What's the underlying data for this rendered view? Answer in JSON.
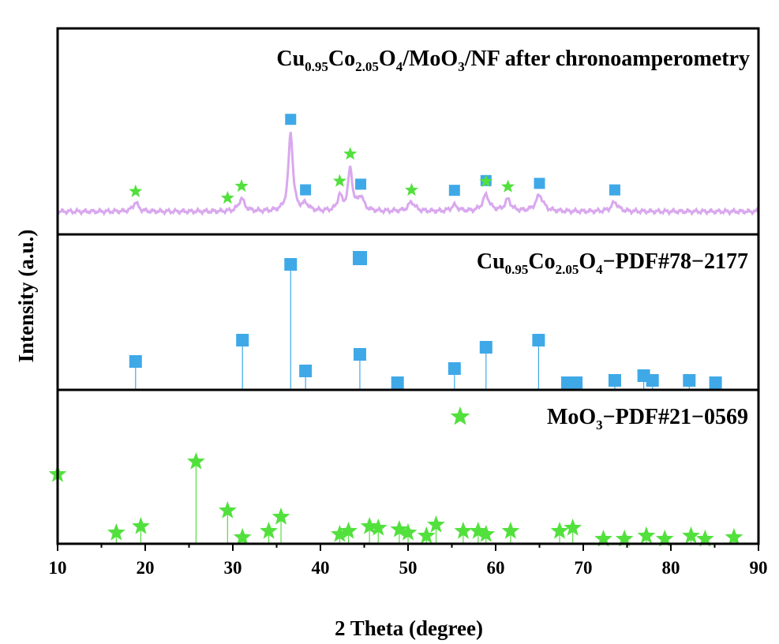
{
  "chart_data": {
    "type": "line",
    "xlabel": "2 Theta (degree)",
    "ylabel": "Intensity (a.u.)",
    "xlim": [
      10,
      90
    ],
    "xticks": [
      "10",
      "20",
      "30",
      "40",
      "50",
      "60",
      "70",
      "80",
      "90"
    ],
    "grid": false,
    "colors": {
      "measured": "#d9a8ee",
      "spinel": "#3fa9e8",
      "moo3": "#52e03d"
    },
    "panels": [
      {
        "id": "measured",
        "title_parts": [
          {
            "t": "Cu"
          },
          {
            "t": "0.95",
            "sub": true
          },
          {
            "t": "Co"
          },
          {
            "t": "2.05",
            "sub": true
          },
          {
            "t": "O"
          },
          {
            "t": "4",
            "sub": true
          },
          {
            "t": "/MoO"
          },
          {
            "t": "3",
            "sub": true
          },
          {
            "t": "/NF after chronoamperometry"
          }
        ],
        "series": {
          "type": "line",
          "peaks": [
            {
              "x": 18.9,
              "h": 0.08,
              "w": 0.35
            },
            {
              "x": 31.0,
              "h": 0.11,
              "w": 0.4
            },
            {
              "x": 36.6,
              "h": 0.68,
              "w": 0.3
            },
            {
              "x": 38.3,
              "h": 0.06,
              "w": 0.4
            },
            {
              "x": 42.2,
              "h": 0.13,
              "w": 0.3
            },
            {
              "x": 43.4,
              "h": 0.36,
              "w": 0.3
            },
            {
              "x": 44.6,
              "h": 0.12,
              "w": 0.4
            },
            {
              "x": 50.4,
              "h": 0.08,
              "w": 0.45
            },
            {
              "x": 55.3,
              "h": 0.05,
              "w": 0.45
            },
            {
              "x": 58.9,
              "h": 0.14,
              "w": 0.45
            },
            {
              "x": 61.4,
              "h": 0.1,
              "w": 0.4
            },
            {
              "x": 65.0,
              "h": 0.14,
              "w": 0.5
            },
            {
              "x": 73.6,
              "h": 0.08,
              "w": 0.45
            }
          ],
          "square_markers": [
            36.6,
            38.3,
            44.6,
            55.3,
            58.9,
            65.0,
            73.6
          ],
          "star_markers": [
            18.9,
            29.4,
            31.0,
            42.2,
            43.4,
            50.4,
            58.9,
            61.4
          ]
        }
      },
      {
        "id": "spinel",
        "title_parts": [
          {
            "t": "Cu"
          },
          {
            "t": "0.95",
            "sub": true
          },
          {
            "t": "Co"
          },
          {
            "t": "2.05",
            "sub": true
          },
          {
            "t": "O"
          },
          {
            "t": "4",
            "sub": true
          },
          {
            "t": "−PDF#78−2177"
          }
        ],
        "marker": "square",
        "sticks": [
          {
            "x": 18.9,
            "y": 0.12
          },
          {
            "x": 31.1,
            "y": 0.21
          },
          {
            "x": 36.6,
            "y": 0.53
          },
          {
            "x": 38.3,
            "y": 0.08
          },
          {
            "x": 44.5,
            "y": 0.15
          },
          {
            "x": 48.8,
            "y": 0.03
          },
          {
            "x": 55.3,
            "y": 0.09
          },
          {
            "x": 58.9,
            "y": 0.18
          },
          {
            "x": 64.9,
            "y": 0.21
          },
          {
            "x": 68.2,
            "y": 0.03
          },
          {
            "x": 69.2,
            "y": 0.03
          },
          {
            "x": 73.6,
            "y": 0.04
          },
          {
            "x": 76.9,
            "y": 0.06
          },
          {
            "x": 77.9,
            "y": 0.04
          },
          {
            "x": 82.1,
            "y": 0.04
          },
          {
            "x": 85.1,
            "y": 0.03
          }
        ]
      },
      {
        "id": "moo3",
        "title_parts": [
          {
            "t": "MoO"
          },
          {
            "t": "3",
            "sub": true
          },
          {
            "t": "−PDF#21−0569"
          }
        ],
        "marker": "star",
        "sticks": [
          {
            "x": 10.0,
            "y": 0.44
          },
          {
            "x": 16.7,
            "y": 0.07
          },
          {
            "x": 19.5,
            "y": 0.11
          },
          {
            "x": 25.8,
            "y": 0.52
          },
          {
            "x": 29.4,
            "y": 0.21
          },
          {
            "x": 31.1,
            "y": 0.04
          },
          {
            "x": 34.1,
            "y": 0.08
          },
          {
            "x": 35.5,
            "y": 0.17
          },
          {
            "x": 42.2,
            "y": 0.06
          },
          {
            "x": 43.2,
            "y": 0.08
          },
          {
            "x": 45.6,
            "y": 0.11
          },
          {
            "x": 46.6,
            "y": 0.1
          },
          {
            "x": 49.0,
            "y": 0.09
          },
          {
            "x": 50.0,
            "y": 0.07
          },
          {
            "x": 52.1,
            "y": 0.05
          },
          {
            "x": 53.2,
            "y": 0.12
          },
          {
            "x": 56.3,
            "y": 0.08
          },
          {
            "x": 58.0,
            "y": 0.08
          },
          {
            "x": 58.9,
            "y": 0.06
          },
          {
            "x": 61.7,
            "y": 0.08
          },
          {
            "x": 67.3,
            "y": 0.08
          },
          {
            "x": 68.8,
            "y": 0.1
          },
          {
            "x": 72.3,
            "y": 0.03
          },
          {
            "x": 74.7,
            "y": 0.03
          },
          {
            "x": 77.2,
            "y": 0.05
          },
          {
            "x": 79.3,
            "y": 0.03
          },
          {
            "x": 82.3,
            "y": 0.05
          },
          {
            "x": 83.9,
            "y": 0.03
          },
          {
            "x": 87.2,
            "y": 0.04
          }
        ]
      }
    ]
  }
}
